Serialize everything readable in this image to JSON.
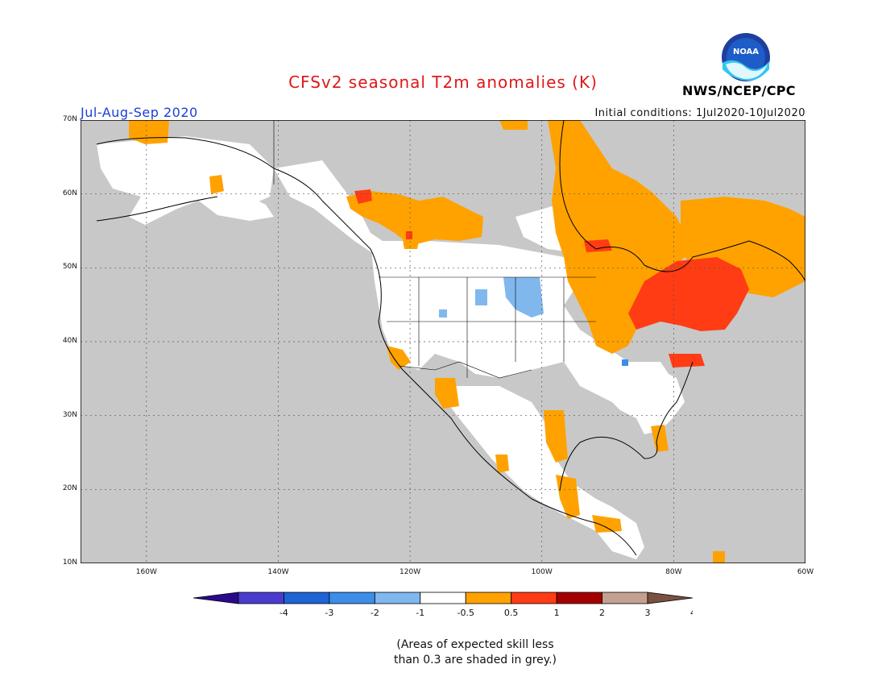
{
  "header": {
    "title": "CFSv2 seasonal T2m anomalies (K)",
    "period": "Jul-Aug-Sep 2020",
    "initial_conditions": "Initial conditions: 1Jul2020-10Jul2020",
    "agency": "NWS/NCEP/CPC",
    "logo_text": "NOAA"
  },
  "axes": {
    "lon_labels": [
      "160W",
      "140W",
      "120W",
      "100W",
      "80W",
      "60W"
    ],
    "lat_labels": [
      "70N",
      "60N",
      "50N",
      "40N",
      "30N",
      "20N",
      "10N"
    ],
    "lon_range": [
      -170,
      -60
    ],
    "lat_range": [
      10,
      70
    ]
  },
  "legend": {
    "labels": [
      "-4",
      "-3",
      "-2",
      "-1",
      "-0.5",
      "0.5",
      "1",
      "2",
      "3",
      "4"
    ],
    "colors": [
      "#2a0a8a",
      "#4a3ccf",
      "#1e64d4",
      "#3d8ee8",
      "#80b8ee",
      "#ffffff",
      "#ffa200",
      "#ff3c14",
      "#a40000",
      "#c4a090",
      "#7a5040"
    ]
  },
  "note": {
    "line1": "(Areas of expected skill less",
    "line2": "than 0.3 are shaded in grey.)"
  },
  "colors": {
    "grey_skill": "#c8c8c8",
    "white": "#ffffff",
    "orange": "#ffa200",
    "red": "#ff3c14",
    "light_blue": "#80b8ee",
    "blue": "#3d8ee8"
  }
}
